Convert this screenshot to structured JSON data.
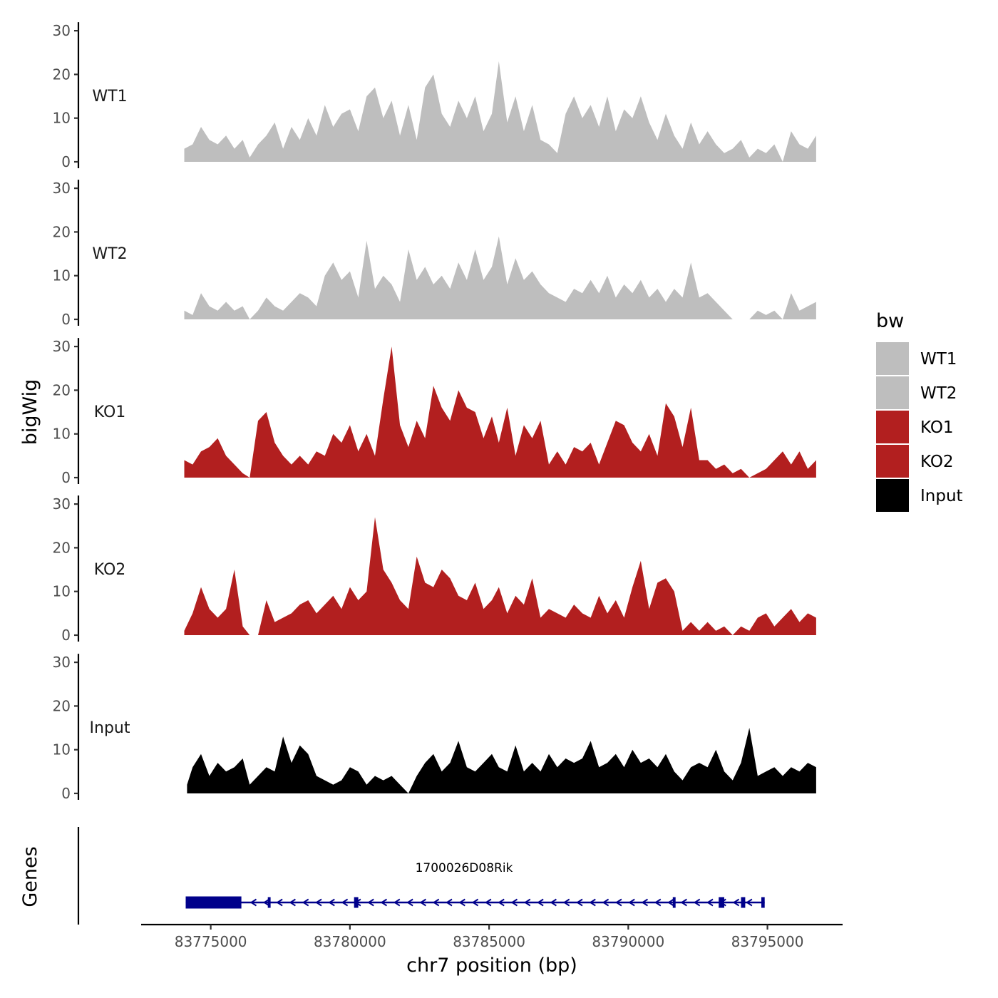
{
  "chart_data": {
    "type": "area",
    "chromosome": "chr7",
    "xlabel": "chr7 position (bp)",
    "ylabel": "bigWig",
    "genes_axis_label": "Genes",
    "ylim": [
      0,
      30
    ],
    "yticks": [
      0,
      10,
      20,
      30
    ],
    "xlim": [
      83772500,
      83797700
    ],
    "xticks": [
      83775000,
      83780000,
      83785000,
      83790000,
      83795000
    ],
    "xtick_labels": [
      "83775000",
      "83780000",
      "83785000",
      "83790000",
      "83795000"
    ],
    "legend": {
      "title": "bw",
      "position": "right",
      "entries": [
        {
          "name": "WT1",
          "color": "#bebebe"
        },
        {
          "name": "WT2",
          "color": "#bebebe"
        },
        {
          "name": "KO1",
          "color": "#b21f1f"
        },
        {
          "name": "KO2",
          "color": "#b21f1f"
        },
        {
          "name": "Input",
          "color": "#000000"
        }
      ]
    },
    "series": [
      {
        "name": "WT1",
        "color": "#bebebe",
        "x": [
          83774050,
          83774350,
          83774650,
          83774950,
          83775250,
          83775550,
          83775850,
          83776150,
          83776400,
          83776700,
          83777000,
          83777300,
          83777600,
          83777900,
          83778200,
          83778500,
          83778800,
          83779100,
          83779400,
          83779700,
          83780000,
          83780300,
          83780600,
          83780900,
          83781200,
          83781500,
          83781800,
          83782100,
          83782400,
          83782700,
          83783000,
          83783300,
          83783600,
          83783900,
          83784200,
          83784500,
          83784800,
          83785100,
          83785350,
          83785650,
          83785950,
          83786250,
          83786550,
          83786850,
          83787150,
          83787450,
          83787750,
          83788050,
          83788350,
          83788650,
          83788950,
          83789250,
          83789550,
          83789850,
          83790150,
          83790450,
          83790750,
          83791050,
          83791350,
          83791650,
          83791950,
          83792250,
          83792550,
          83792850,
          83793150,
          83793450,
          83793750,
          83794050,
          83794350,
          83794650,
          83794950,
          83795250,
          83795550,
          83795850,
          83796150,
          83796450,
          83796750
        ],
        "values": [
          3,
          4,
          8,
          5,
          4,
          6,
          3,
          5,
          1,
          4,
          6,
          9,
          3,
          8,
          5,
          10,
          6,
          13,
          8,
          11,
          12,
          7,
          15,
          17,
          10,
          14,
          6,
          13,
          5,
          17,
          20,
          11,
          8,
          14,
          10,
          15,
          7,
          11,
          23,
          9,
          15,
          7,
          13,
          5,
          4,
          2,
          11,
          15,
          10,
          13,
          8,
          15,
          7,
          12,
          10,
          15,
          9,
          5,
          11,
          6,
          3,
          9,
          4,
          7,
          4,
          2,
          3,
          5,
          1,
          3,
          2,
          4,
          0,
          7,
          4,
          3,
          6
        ]
      },
      {
        "name": "WT2",
        "color": "#bebebe",
        "x": [
          83774050,
          83774350,
          83774650,
          83774950,
          83775250,
          83775550,
          83775850,
          83776150,
          83776400,
          83776700,
          83777000,
          83777300,
          83777600,
          83777900,
          83778200,
          83778500,
          83778800,
          83779100,
          83779400,
          83779700,
          83780000,
          83780300,
          83780600,
          83780900,
          83781200,
          83781500,
          83781800,
          83782100,
          83782400,
          83782700,
          83783000,
          83783300,
          83783600,
          83783900,
          83784200,
          83784500,
          83784800,
          83785100,
          83785350,
          83785650,
          83785950,
          83786250,
          83786550,
          83786850,
          83787150,
          83787450,
          83787750,
          83788050,
          83788350,
          83788650,
          83788950,
          83789250,
          83789550,
          83789850,
          83790150,
          83790450,
          83790750,
          83791050,
          83791350,
          83791650,
          83791950,
          83792250,
          83792550,
          83792850,
          83793150,
          83793450,
          83793750,
          83794050,
          83794350,
          83794650,
          83794950,
          83795250,
          83795550,
          83795850,
          83796150,
          83796450,
          83796750
        ],
        "values": [
          2,
          1,
          6,
          3,
          2,
          4,
          2,
          3,
          0,
          2,
          5,
          3,
          2,
          4,
          6,
          5,
          3,
          10,
          13,
          9,
          11,
          5,
          18,
          7,
          10,
          8,
          4,
          16,
          9,
          12,
          8,
          10,
          7,
          13,
          9,
          16,
          9,
          12,
          19,
          8,
          14,
          9,
          11,
          8,
          6,
          5,
          4,
          7,
          6,
          9,
          6,
          10,
          5,
          8,
          6,
          9,
          5,
          7,
          4,
          7,
          5,
          13,
          5,
          6,
          4,
          2,
          0,
          0,
          0,
          2,
          1,
          2,
          0,
          6,
          2,
          3,
          4
        ]
      },
      {
        "name": "KO1",
        "color": "#b21f1f",
        "x": [
          83774050,
          83774350,
          83774650,
          83774950,
          83775250,
          83775550,
          83775850,
          83776150,
          83776400,
          83776700,
          83777000,
          83777300,
          83777600,
          83777900,
          83778200,
          83778500,
          83778800,
          83779100,
          83779400,
          83779700,
          83780000,
          83780300,
          83780600,
          83780900,
          83781200,
          83781500,
          83781800,
          83782100,
          83782400,
          83782700,
          83783000,
          83783300,
          83783600,
          83783900,
          83784200,
          83784500,
          83784800,
          83785100,
          83785350,
          83785650,
          83785950,
          83786250,
          83786550,
          83786850,
          83787150,
          83787450,
          83787750,
          83788050,
          83788350,
          83788650,
          83788950,
          83789250,
          83789550,
          83789850,
          83790150,
          83790450,
          83790750,
          83791050,
          83791350,
          83791650,
          83791950,
          83792250,
          83792550,
          83792850,
          83793150,
          83793450,
          83793750,
          83794050,
          83794350,
          83794650,
          83794950,
          83795250,
          83795550,
          83795850,
          83796150,
          83796450,
          83796750
        ],
        "values": [
          4,
          3,
          6,
          7,
          9,
          5,
          3,
          1,
          0,
          13,
          15,
          8,
          5,
          3,
          5,
          3,
          6,
          5,
          10,
          8,
          12,
          6,
          10,
          5,
          18,
          30,
          12,
          7,
          13,
          9,
          21,
          16,
          13,
          20,
          16,
          15,
          9,
          14,
          8,
          16,
          5,
          12,
          9,
          13,
          3,
          6,
          3,
          7,
          6,
          8,
          3,
          8,
          13,
          12,
          8,
          6,
          10,
          5,
          17,
          14,
          7,
          16,
          4,
          4,
          2,
          3,
          1,
          2,
          0,
          1,
          2,
          4,
          6,
          3,
          6,
          2,
          4
        ]
      },
      {
        "name": "KO2",
        "color": "#b21f1f",
        "x": [
          83774050,
          83774350,
          83774650,
          83774950,
          83775250,
          83775550,
          83775850,
          83776150,
          83776400,
          83776700,
          83777000,
          83777300,
          83777600,
          83777900,
          83778200,
          83778500,
          83778800,
          83779100,
          83779400,
          83779700,
          83780000,
          83780300,
          83780600,
          83780900,
          83781200,
          83781500,
          83781800,
          83782100,
          83782400,
          83782700,
          83783000,
          83783300,
          83783600,
          83783900,
          83784200,
          83784500,
          83784800,
          83785100,
          83785350,
          83785650,
          83785950,
          83786250,
          83786550,
          83786850,
          83787150,
          83787450,
          83787750,
          83788050,
          83788350,
          83788650,
          83788950,
          83789250,
          83789550,
          83789850,
          83790150,
          83790450,
          83790750,
          83791050,
          83791350,
          83791650,
          83791950,
          83792250,
          83792550,
          83792850,
          83793150,
          83793450,
          83793750,
          83794050,
          83794350,
          83794650,
          83794950,
          83795250,
          83795550,
          83795850,
          83796150,
          83796450,
          83796750
        ],
        "values": [
          1,
          5,
          11,
          6,
          4,
          6,
          15,
          2,
          0,
          0,
          8,
          3,
          4,
          5,
          7,
          8,
          5,
          7,
          9,
          6,
          11,
          8,
          10,
          27,
          15,
          12,
          8,
          6,
          18,
          12,
          11,
          15,
          13,
          9,
          8,
          12,
          6,
          8,
          11,
          5,
          9,
          7,
          13,
          4,
          6,
          5,
          4,
          7,
          5,
          4,
          9,
          5,
          8,
          4,
          11,
          17,
          6,
          12,
          13,
          10,
          1,
          3,
          1,
          3,
          1,
          2,
          0,
          2,
          1,
          4,
          5,
          2,
          4,
          6,
          3,
          5,
          4
        ]
      },
      {
        "name": "Input",
        "color": "#000000",
        "x": [
          83774150,
          83774350,
          83774650,
          83774950,
          83775250,
          83775550,
          83775850,
          83776150,
          83776400,
          83776700,
          83777000,
          83777300,
          83777600,
          83777900,
          83778200,
          83778500,
          83778800,
          83779100,
          83779400,
          83779700,
          83780000,
          83780300,
          83780600,
          83780900,
          83781200,
          83781500,
          83781800,
          83782100,
          83782400,
          83782700,
          83783000,
          83783300,
          83783600,
          83783900,
          83784200,
          83784500,
          83784800,
          83785100,
          83785350,
          83785650,
          83785950,
          83786250,
          83786550,
          83786850,
          83787150,
          83787450,
          83787750,
          83788050,
          83788350,
          83788650,
          83788950,
          83789250,
          83789550,
          83789850,
          83790150,
          83790450,
          83790750,
          83791050,
          83791350,
          83791650,
          83791950,
          83792250,
          83792550,
          83792850,
          83793150,
          83793450,
          83793750,
          83794050,
          83794350,
          83794650,
          83794950,
          83795250,
          83795550,
          83795850,
          83796150,
          83796450,
          83796750
        ],
        "values": [
          2,
          6,
          9,
          4,
          7,
          5,
          6,
          8,
          2,
          4,
          6,
          5,
          13,
          7,
          11,
          9,
          4,
          3,
          2,
          3,
          6,
          5,
          2,
          4,
          3,
          4,
          2,
          0,
          4,
          7,
          9,
          5,
          7,
          12,
          6,
          5,
          7,
          9,
          6,
          5,
          11,
          5,
          7,
          5,
          9,
          6,
          8,
          7,
          8,
          12,
          6,
          7,
          9,
          6,
          10,
          7,
          8,
          6,
          9,
          5,
          3,
          6,
          7,
          6,
          10,
          5,
          3,
          7,
          15,
          4,
          5,
          6,
          4,
          6,
          5,
          7,
          6
        ]
      }
    ],
    "gene": {
      "name": "1700026D08Rik",
      "strand": "-",
      "start": 83774100,
      "end": 83794900,
      "color": "#00008b",
      "exons": [
        {
          "start": 83774100,
          "end": 83776100,
          "height": "thick"
        },
        {
          "start": 83777050,
          "end": 83777150,
          "height": "thin"
        },
        {
          "start": 83780150,
          "end": 83780300,
          "height": "thin"
        },
        {
          "start": 83791600,
          "end": 83791700,
          "height": "thin"
        },
        {
          "start": 83793250,
          "end": 83793450,
          "height": "thin"
        },
        {
          "start": 83794050,
          "end": 83794200,
          "height": "thin"
        },
        {
          "start": 83794780,
          "end": 83794900,
          "height": "thin"
        }
      ]
    }
  }
}
